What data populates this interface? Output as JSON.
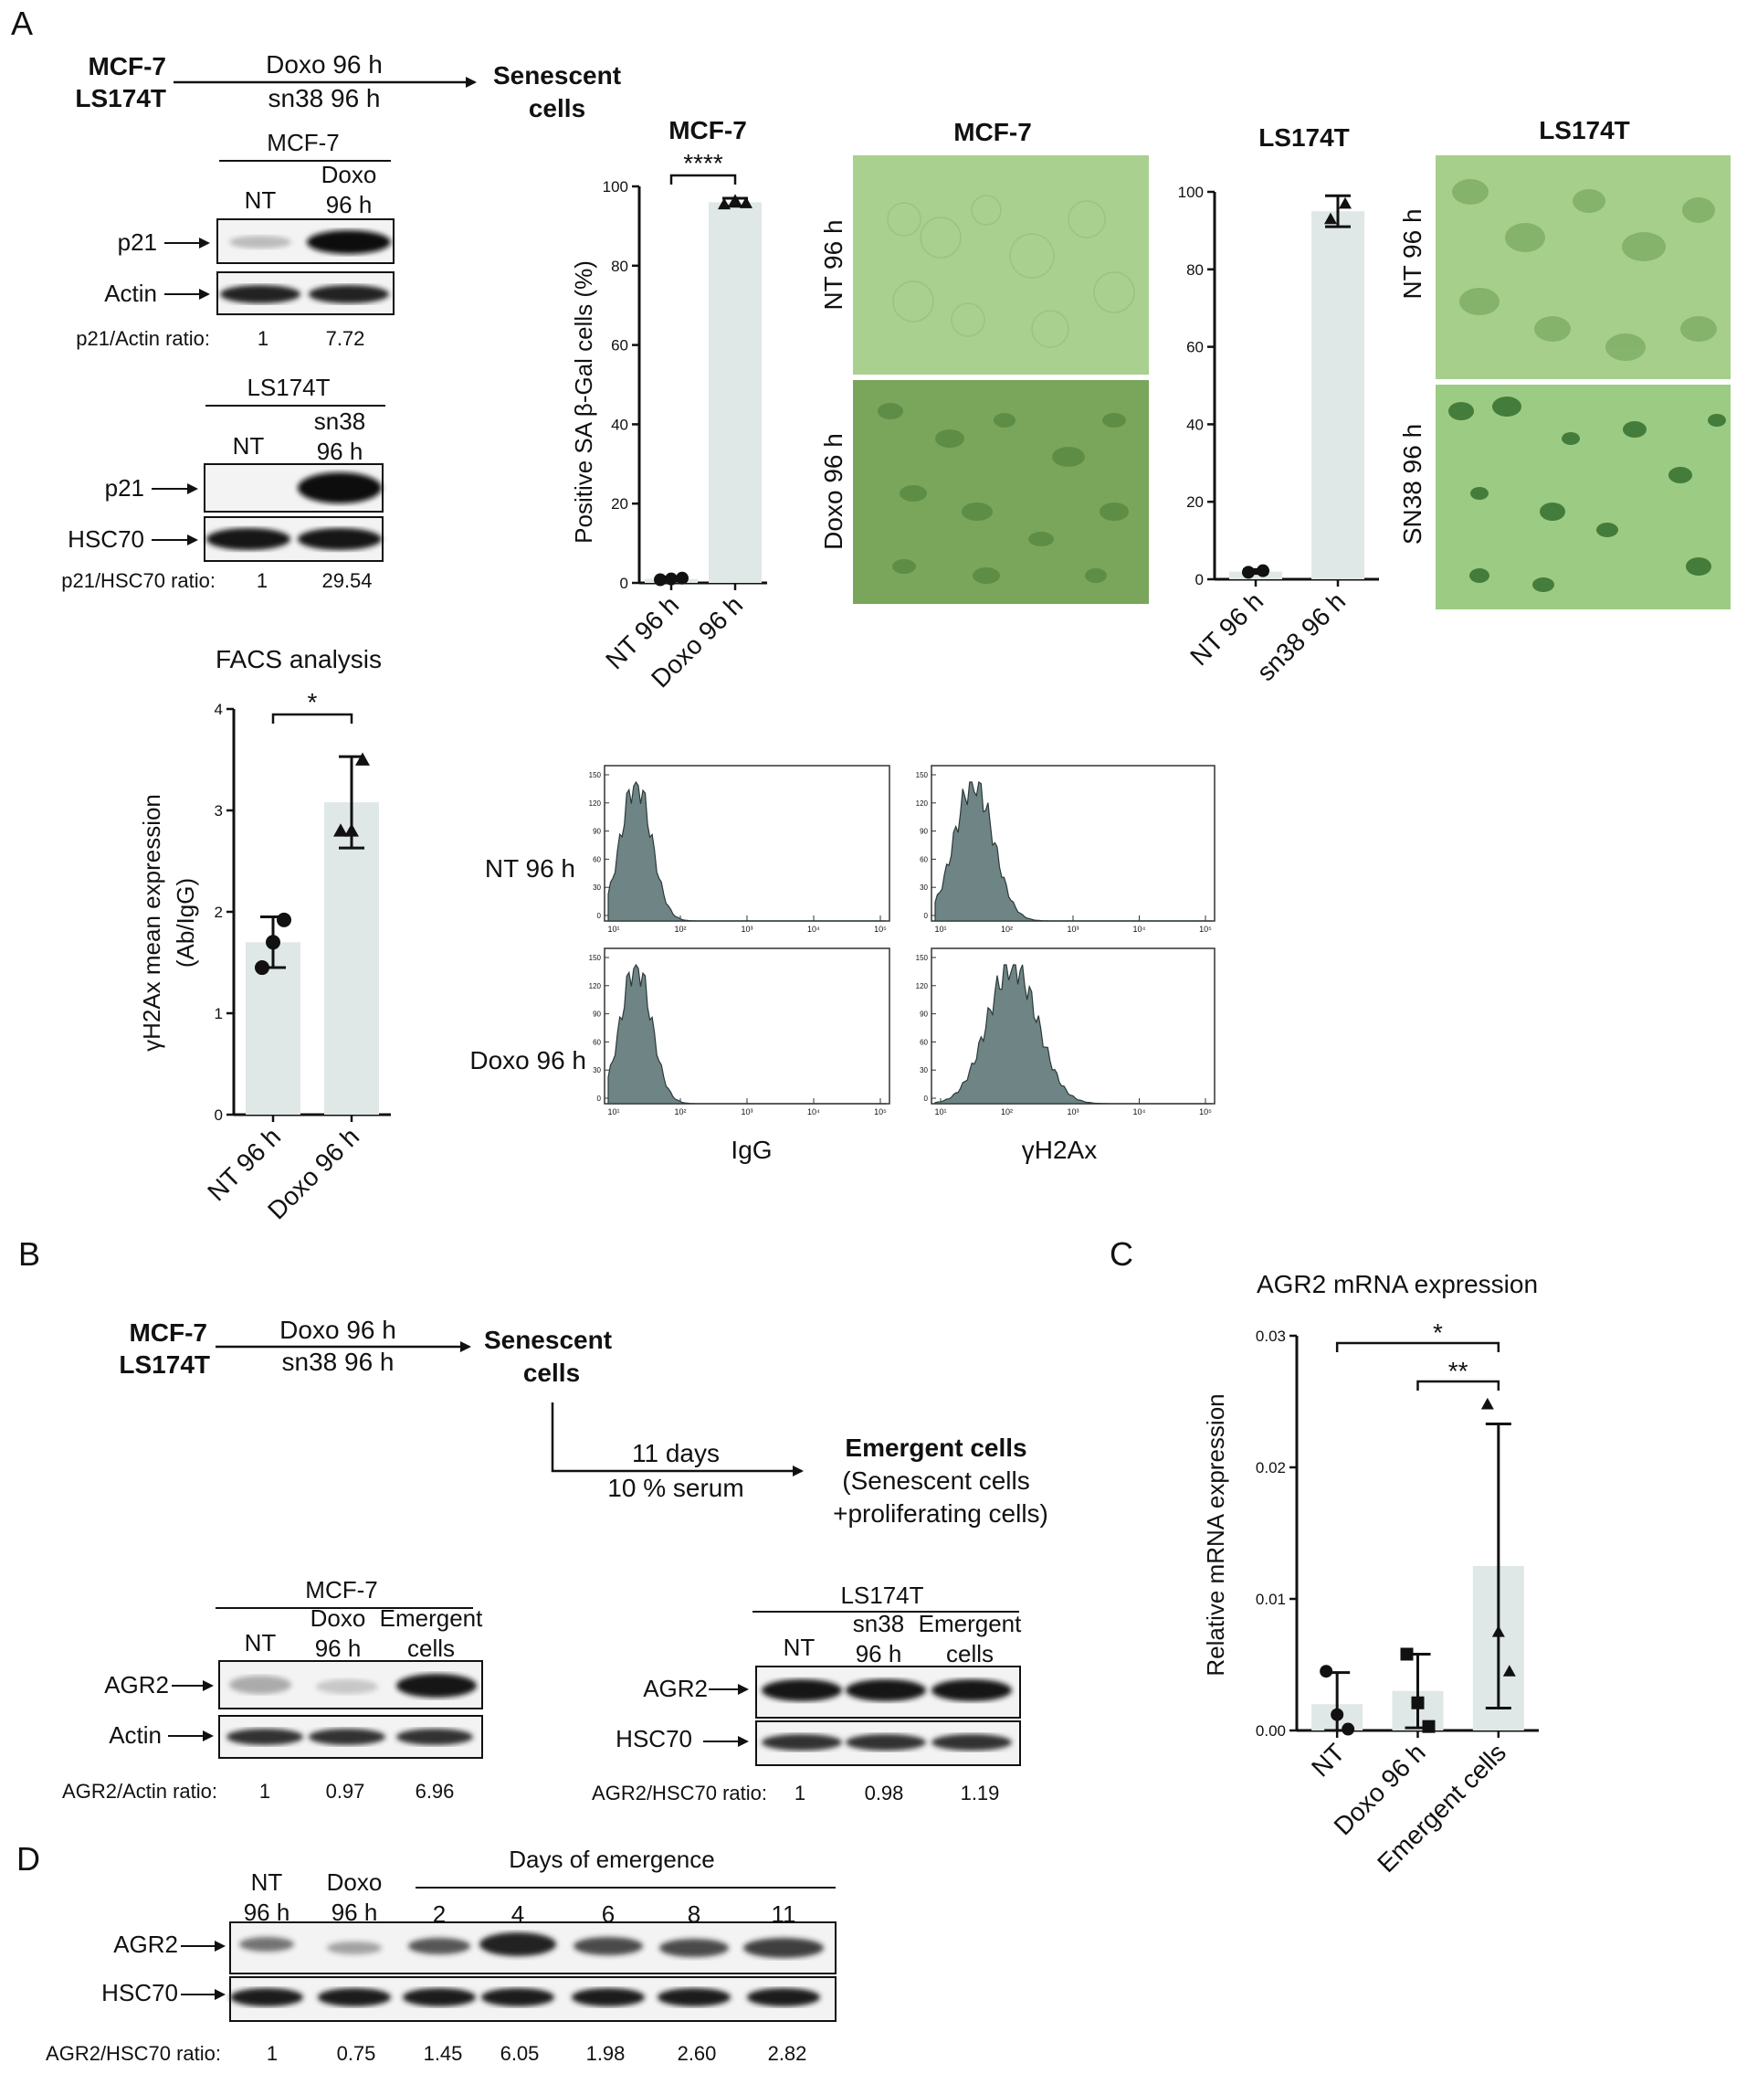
{
  "panels": {
    "A": "A",
    "B": "B",
    "C": "C",
    "D": "D"
  },
  "schemeA": {
    "lines": [
      "MCF-7",
      "LS174T"
    ],
    "treat": [
      "Doxo  96 h",
      "sn38 96 h"
    ],
    "result": [
      "Senescent",
      "cells"
    ]
  },
  "westernA_mcf7": {
    "title": "MCF-7",
    "lanes": [
      [
        "NT"
      ],
      [
        "Doxo",
        "96 h"
      ]
    ],
    "rows": [
      "p21",
      "Actin"
    ],
    "ratio_label": "p21/Actin ratio:",
    "ratios": [
      "1",
      "7.72"
    ]
  },
  "westernA_ls": {
    "title": "LS174T",
    "lanes": [
      [
        "NT"
      ],
      [
        "sn38",
        "96 h"
      ]
    ],
    "rows": [
      "p21",
      "HSC70"
    ],
    "ratio_label": "p21/HSC70 ratio:",
    "ratios": [
      "1",
      "29.54"
    ]
  },
  "sagal": {
    "mcf7_title": "MCF-7",
    "ls_title": "LS174T",
    "ylabel": "Positive SA β-Gal cells (%)",
    "significance": "****",
    "image_labels_mcf7": [
      "NT 96 h",
      "Doxo 96 h"
    ],
    "image_labels_ls": [
      "NT 96 h",
      "SN38 96 h"
    ]
  },
  "facs": {
    "title": "FACS analysis",
    "significance": "*",
    "ylabel_1": "γH2Ax mean expression",
    "ylabel_2": "(Ab/IgG)",
    "row_labels": [
      "NT 96 h",
      "Doxo 96 h"
    ],
    "col_labels": [
      "IgG",
      "γH2Ax"
    ],
    "hist_ticks": [
      "10¹",
      "10²",
      "10³",
      "10⁴",
      "10⁵"
    ],
    "hist_yticks": [
      "150",
      "120",
      "90",
      "60",
      "30",
      "0"
    ]
  },
  "schemeB": {
    "lines": [
      "MCF-7",
      "LS174T"
    ],
    "treat": [
      "Doxo 96 h",
      "sn38 96 h"
    ],
    "result": [
      "Senescent",
      "cells"
    ],
    "step": [
      "11 days",
      "10 % serum"
    ],
    "emergent": [
      "Emergent cells",
      "(Senescent cells",
      "+proliferating cells)"
    ]
  },
  "westernB_mcf7": {
    "title": "MCF-7",
    "lanes": [
      [
        "NT"
      ],
      [
        "Doxo",
        "96 h"
      ],
      [
        "Emergent",
        "cells"
      ]
    ],
    "rows": [
      "AGR2",
      "Actin"
    ],
    "ratio_label": "AGR2/Actin ratio:",
    "ratios": [
      "1",
      "0.97",
      "6.96"
    ]
  },
  "westernB_ls": {
    "title": "LS174T",
    "lanes": [
      [
        "NT"
      ],
      [
        "sn38",
        "96 h"
      ],
      [
        "Emergent",
        "cells"
      ]
    ],
    "rows": [
      "AGR2",
      "HSC70"
    ],
    "ratio_label": "AGR2/HSC70 ratio:",
    "ratios": [
      "1",
      "0.98",
      "1.19"
    ]
  },
  "westernD": {
    "lanes": [
      [
        "NT",
        "96 h"
      ],
      [
        "Doxo",
        "96 h"
      ]
    ],
    "days_title": "Days of emergence",
    "days": [
      "2",
      "4",
      "6",
      "8",
      "11"
    ],
    "rows": [
      "AGR2",
      "HSC70"
    ],
    "ratio_label": "AGR2/HSC70 ratio:",
    "ratios": [
      "1",
      "0.75",
      "1.45",
      "6.05",
      "1.98",
      "2.60",
      "2.82"
    ]
  },
  "chart_data": [
    {
      "type": "bar",
      "title": "MCF-7",
      "categories": [
        "NT 96 h",
        "Doxo 96 h"
      ],
      "values": [
        1,
        96
      ],
      "points": [
        [
          0.8,
          1,
          1.2
        ],
        [
          95.5,
          96.5,
          95.8
        ]
      ],
      "error": [
        0.5,
        1.0
      ],
      "ylim": [
        0,
        100
      ],
      "yticks": [
        "0",
        "20",
        "40",
        "60",
        "80",
        "100"
      ],
      "ylabel": "Positive SA β-Gal cells (%)",
      "annotation": "****"
    },
    {
      "type": "bar",
      "title": "LS174T",
      "categories": [
        "NT 96 h",
        "sn38 96 h"
      ],
      "values": [
        2,
        95
      ],
      "points": [
        [
          1.8,
          2.2
        ],
        [
          93,
          97
        ]
      ],
      "error": [
        0.5,
        4
      ],
      "ylim": [
        0,
        100
      ],
      "yticks": [
        "0",
        "20",
        "40",
        "60",
        "80",
        "100"
      ]
    },
    {
      "type": "bar",
      "title": "FACS analysis",
      "categories": [
        "NT 96 h",
        "Doxo 96 h"
      ],
      "values": [
        1.7,
        3.08
      ],
      "points": [
        [
          1.45,
          1.7,
          1.92
        ],
        [
          2.8,
          2.8,
          3.5
        ]
      ],
      "error": [
        0.25,
        0.45
      ],
      "ylim": [
        0,
        4
      ],
      "yticks": [
        "0",
        "1",
        "2",
        "3",
        "4"
      ],
      "ylabel": "γH2Ax mean expression (Ab/IgG)",
      "annotation": "*"
    },
    {
      "type": "bar",
      "title": "AGR2 mRNA expression",
      "categories": [
        "NT",
        "Doxo 96 h",
        "Emergent cells"
      ],
      "values": [
        0.002,
        0.003,
        0.0125
      ],
      "points": [
        [
          0.0045,
          0.0012,
          0.0001
        ],
        [
          0.0058,
          0.0021,
          0.0003
        ],
        [
          0.0248,
          0.0075,
          0.0045
        ]
      ],
      "error": [
        0.0024,
        0.0028,
        0.0108
      ],
      "ylim": [
        0,
        0.03
      ],
      "yticks": [
        "0.00",
        "0.01",
        "0.02",
        "0.03"
      ],
      "ylabel": "Relative mRNA expression",
      "annotations": [
        "*",
        "**"
      ]
    }
  ]
}
